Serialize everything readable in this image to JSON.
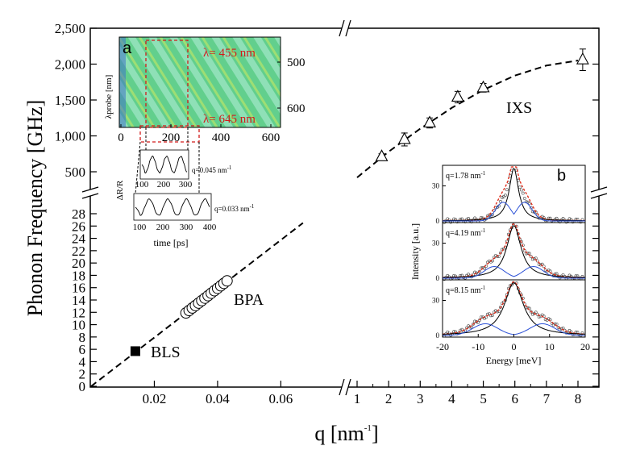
{
  "chart_data": [
    {
      "type": "scatter",
      "ylabel": "Phonon Frequency [GHz]",
      "xlabel": "q [nm",
      "xlabel_sup": "-1",
      "xlabel_close": "]",
      "lower_x_ticks": [
        "0.02",
        "0.04",
        "0.06"
      ],
      "upper_x_ticks": [
        "1",
        "2",
        "3",
        "4",
        "5",
        "6",
        "7",
        "8"
      ],
      "lower_y_ticks": [
        "0",
        "2",
        "4",
        "6",
        "8",
        "10",
        "12",
        "14",
        "16",
        "18",
        "20",
        "22",
        "24",
        "26",
        "28"
      ],
      "upper_y_ticks": [
        "500",
        "1,000",
        "1,500",
        "2,000",
        "2,500"
      ],
      "series": [
        {
          "name": "BLS",
          "marker": "filled-square",
          "points": [
            {
              "x": 0.014,
              "y": 5.7
            }
          ]
        },
        {
          "name": "BPA",
          "marker": "open-circle",
          "points": [
            {
              "x": 0.03,
              "y": 11.9
            },
            {
              "x": 0.031,
              "y": 12.3
            },
            {
              "x": 0.032,
              "y": 12.7
            },
            {
              "x": 0.033,
              "y": 13.1
            },
            {
              "x": 0.034,
              "y": 13.5
            },
            {
              "x": 0.035,
              "y": 13.9
            },
            {
              "x": 0.036,
              "y": 14.3
            },
            {
              "x": 0.037,
              "y": 14.7
            },
            {
              "x": 0.038,
              "y": 15.1
            },
            {
              "x": 0.039,
              "y": 15.5
            },
            {
              "x": 0.04,
              "y": 15.9
            },
            {
              "x": 0.041,
              "y": 16.3
            },
            {
              "x": 0.042,
              "y": 16.7
            },
            {
              "x": 0.043,
              "y": 17.1
            }
          ]
        },
        {
          "name": "IXS",
          "marker": "open-triangle",
          "points": [
            {
              "x": 1.78,
              "y": 710,
              "err": 40
            },
            {
              "x": 2.5,
              "y": 950,
              "err": 90
            },
            {
              "x": 3.3,
              "y": 1180,
              "err": 70
            },
            {
              "x": 4.19,
              "y": 1540,
              "err": 80
            },
            {
              "x": 5.0,
              "y": 1670,
              "err": 60
            },
            {
              "x": 8.15,
              "y": 2060,
              "err": 150
            }
          ]
        }
      ],
      "fit_lower": [
        {
          "x": 0.0,
          "y": 0
        },
        {
          "x": 0.067,
          "y": 26.5
        }
      ],
      "fit_upper": [
        {
          "x": 1.0,
          "y": 420
        },
        {
          "x": 2.0,
          "y": 780
        },
        {
          "x": 3.0,
          "y": 1100
        },
        {
          "x": 4.0,
          "y": 1390
        },
        {
          "x": 5.0,
          "y": 1640
        },
        {
          "x": 6.0,
          "y": 1840
        },
        {
          "x": 7.0,
          "y": 1980
        },
        {
          "x": 8.0,
          "y": 2050
        }
      ],
      "labels": {
        "bls": "BLS",
        "bpa": "BPA",
        "ixs": "IXS"
      }
    },
    {
      "type": "heatmap",
      "panel": "a",
      "ylabel": "λprobe [nm]",
      "x_ticks": [
        "0",
        "200",
        "400",
        "600"
      ],
      "y_ticks": [
        "500",
        "600"
      ],
      "annotations": [
        "λ= 455 nm",
        "λ= 645 nm"
      ],
      "traces": [
        {
          "ylabel": "ΔR/R",
          "label": "q=0.045 nm",
          "label_sup": "-1",
          "x_ticks": [
            "100",
            "200",
            "300"
          ]
        },
        {
          "label": "q=0.033 nm",
          "label_sup": "-1",
          "x_ticks": [
            "100",
            "200",
            "300",
            "400"
          ],
          "xlabel": "time [ps]"
        }
      ]
    },
    {
      "type": "line",
      "panel": "b",
      "xlabel": "Energy [meV]",
      "ylabel": "Intensity [a.u.]",
      "x_ticks": [
        "-20",
        "-10",
        "0",
        "10",
        "20"
      ],
      "y_ticks": [
        "0",
        "30"
      ],
      "xlim": [
        -20,
        20
      ],
      "subpanels": [
        {
          "label": "q=1.78 nm",
          "label_sup": "-1"
        },
        {
          "label": "q=4.19 nm",
          "label_sup": "-1"
        },
        {
          "label": "q=8.15 nm",
          "label_sup": "-1"
        }
      ]
    }
  ]
}
